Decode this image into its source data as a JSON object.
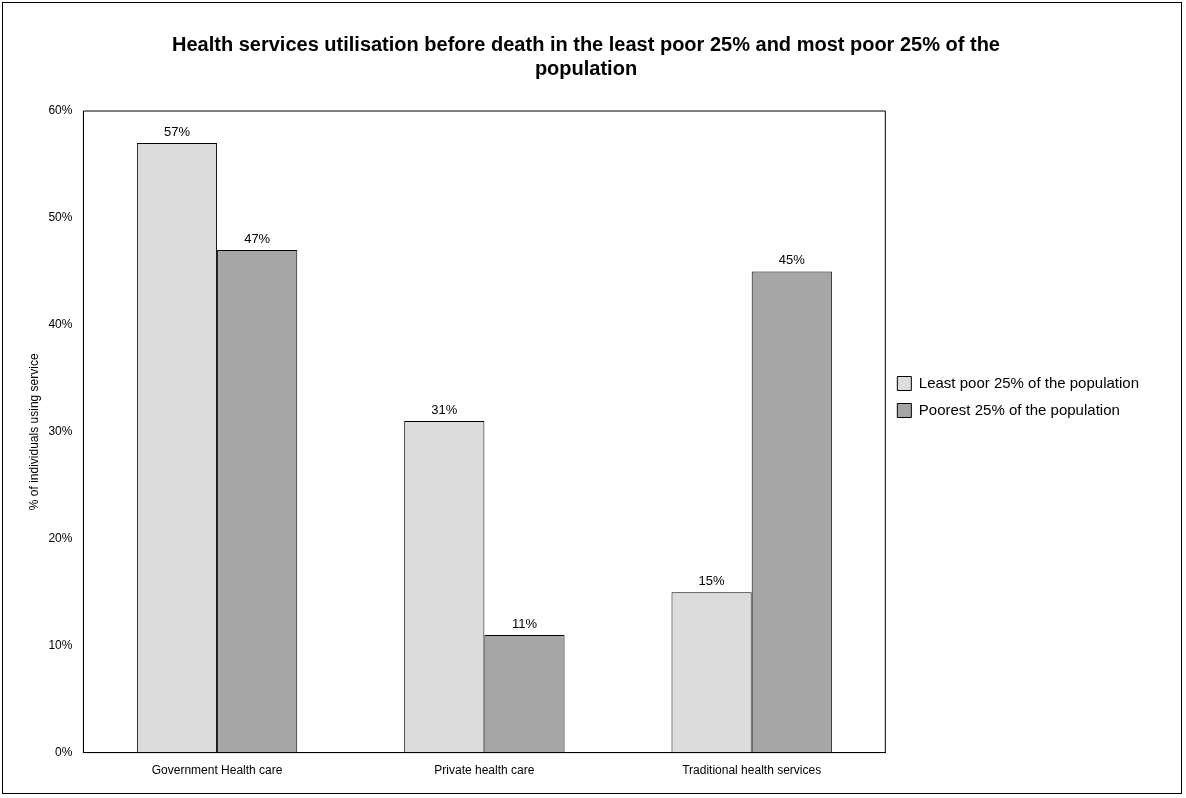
{
  "chart_data": {
    "type": "bar",
    "title": "Health services utilisation before death in the least poor 25% and most poor 25% of the population",
    "ylabel": "% of individuals using service",
    "categories": [
      "Government Health care",
      "Private health care",
      "Traditional health services"
    ],
    "series": [
      {
        "name": "Least poor 25% of the population",
        "color": "#dcdcdc",
        "values": [
          57,
          31,
          15
        ],
        "value_labels": [
          "57%",
          "31%",
          "15%"
        ]
      },
      {
        "name": "Poorest 25% of the population",
        "color": "#a6a6a6",
        "values": [
          47,
          11,
          45
        ],
        "value_labels": [
          "47%",
          "11%",
          "45%"
        ]
      }
    ],
    "ylim": [
      0,
      60
    ],
    "yticks": [
      {
        "value": 0,
        "label": "0%"
      },
      {
        "value": 10,
        "label": "10%"
      },
      {
        "value": 20,
        "label": "20%"
      },
      {
        "value": 30,
        "label": "30%"
      },
      {
        "value": 40,
        "label": "40%"
      },
      {
        "value": 50,
        "label": "50%"
      },
      {
        "value": 60,
        "label": "60%"
      }
    ],
    "grid": false,
    "legend": "right"
  }
}
